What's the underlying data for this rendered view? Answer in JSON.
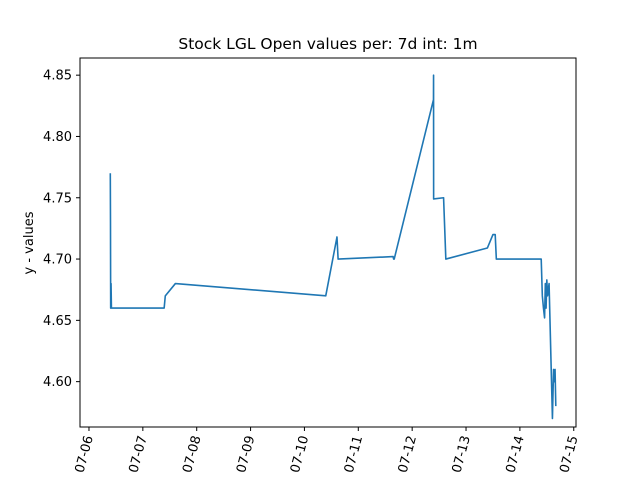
{
  "chart_data": {
    "type": "line",
    "title": "Stock LGL Open values per: 7d int: 1m",
    "xlabel": "",
    "ylabel": "y - values",
    "x_ticks": [
      "07-06",
      "07-07",
      "07-08",
      "07-09",
      "07-10",
      "07-11",
      "07-12",
      "07-13",
      "07-14",
      "07-15"
    ],
    "y_ticks": [
      "4.60",
      "4.65",
      "4.70",
      "4.75",
      "4.80",
      "4.85"
    ],
    "xlim": [
      "2023-07-05T20:00",
      "2023-07-15T01:00"
    ],
    "ylim": [
      4.563,
      4.864
    ],
    "grid": false,
    "line_color": "#1f77b4",
    "series": [
      {
        "x": [
          "2023-07-06T09:30",
          "2023-07-06T09:35",
          "2023-07-06T09:40",
          "2023-07-06T09:50",
          "2023-07-06T10:00",
          "2023-07-07T09:30",
          "2023-07-07T10:00",
          "2023-07-07T14:30",
          "2023-07-10T09:30",
          "2023-07-10T14:30",
          "2023-07-10T15:00",
          "2023-07-11T15:30",
          "2023-07-11T15:45",
          "2023-07-11T16:00",
          "2023-07-12T09:30",
          "2023-07-12T09:32",
          "2023-07-12T09:34",
          "2023-07-12T14:00",
          "2023-07-12T15:00",
          "2023-07-13T09:30",
          "2023-07-13T12:00",
          "2023-07-13T13:00",
          "2023-07-13T13:30",
          "2023-07-14T09:30",
          "2023-07-14T10:00",
          "2023-07-14T10:30",
          "2023-07-14T11:00",
          "2023-07-14T11:20",
          "2023-07-14T11:40",
          "2023-07-14T12:00",
          "2023-07-14T12:20",
          "2023-07-14T12:40",
          "2023-07-14T13:00",
          "2023-07-14T14:30",
          "2023-07-14T15:00",
          "2023-07-14T15:20",
          "2023-07-14T15:40",
          "2023-07-14T16:00"
        ],
        "values": [
          4.77,
          4.73,
          4.66,
          4.68,
          4.66,
          4.66,
          4.67,
          4.68,
          4.67,
          4.718,
          4.7,
          4.702,
          4.7,
          4.7,
          4.83,
          4.85,
          4.749,
          4.75,
          4.7,
          4.709,
          4.72,
          4.72,
          4.7,
          4.7,
          4.67,
          4.66,
          4.652,
          4.68,
          4.66,
          4.683,
          4.67,
          4.675,
          4.68,
          4.57,
          4.61,
          4.6,
          4.61,
          4.58
        ]
      }
    ]
  }
}
